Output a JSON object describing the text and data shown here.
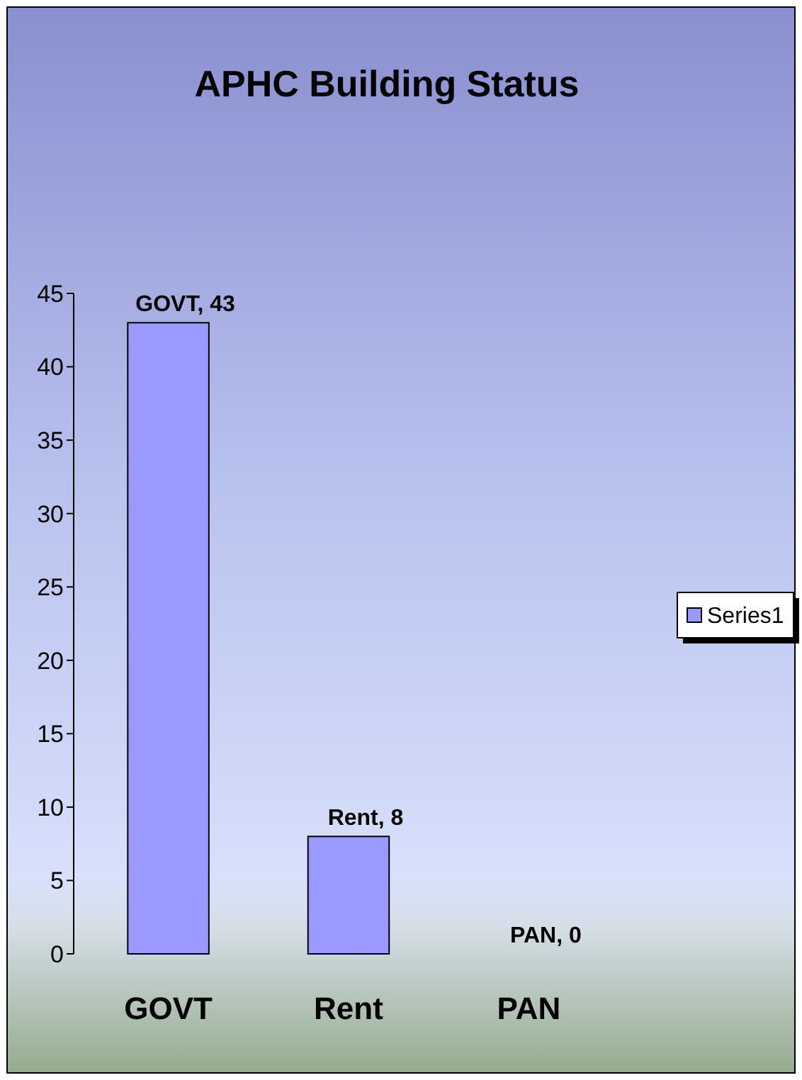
{
  "chart_data": {
    "type": "bar",
    "title": "APHC Building Status",
    "categories": [
      "GOVT",
      "Rent",
      "PAN"
    ],
    "series": [
      {
        "name": "Series1",
        "color": "#9999ff",
        "values": [
          43,
          8,
          0
        ],
        "value_labels": [
          "GOVT, 43",
          "Rent, 8",
          "PAN, 0"
        ]
      }
    ],
    "ylim": [
      0,
      45
    ],
    "yticks": [
      0,
      5,
      10,
      15,
      20,
      25,
      30,
      35,
      40,
      45
    ],
    "grid": false,
    "legend": "right"
  }
}
